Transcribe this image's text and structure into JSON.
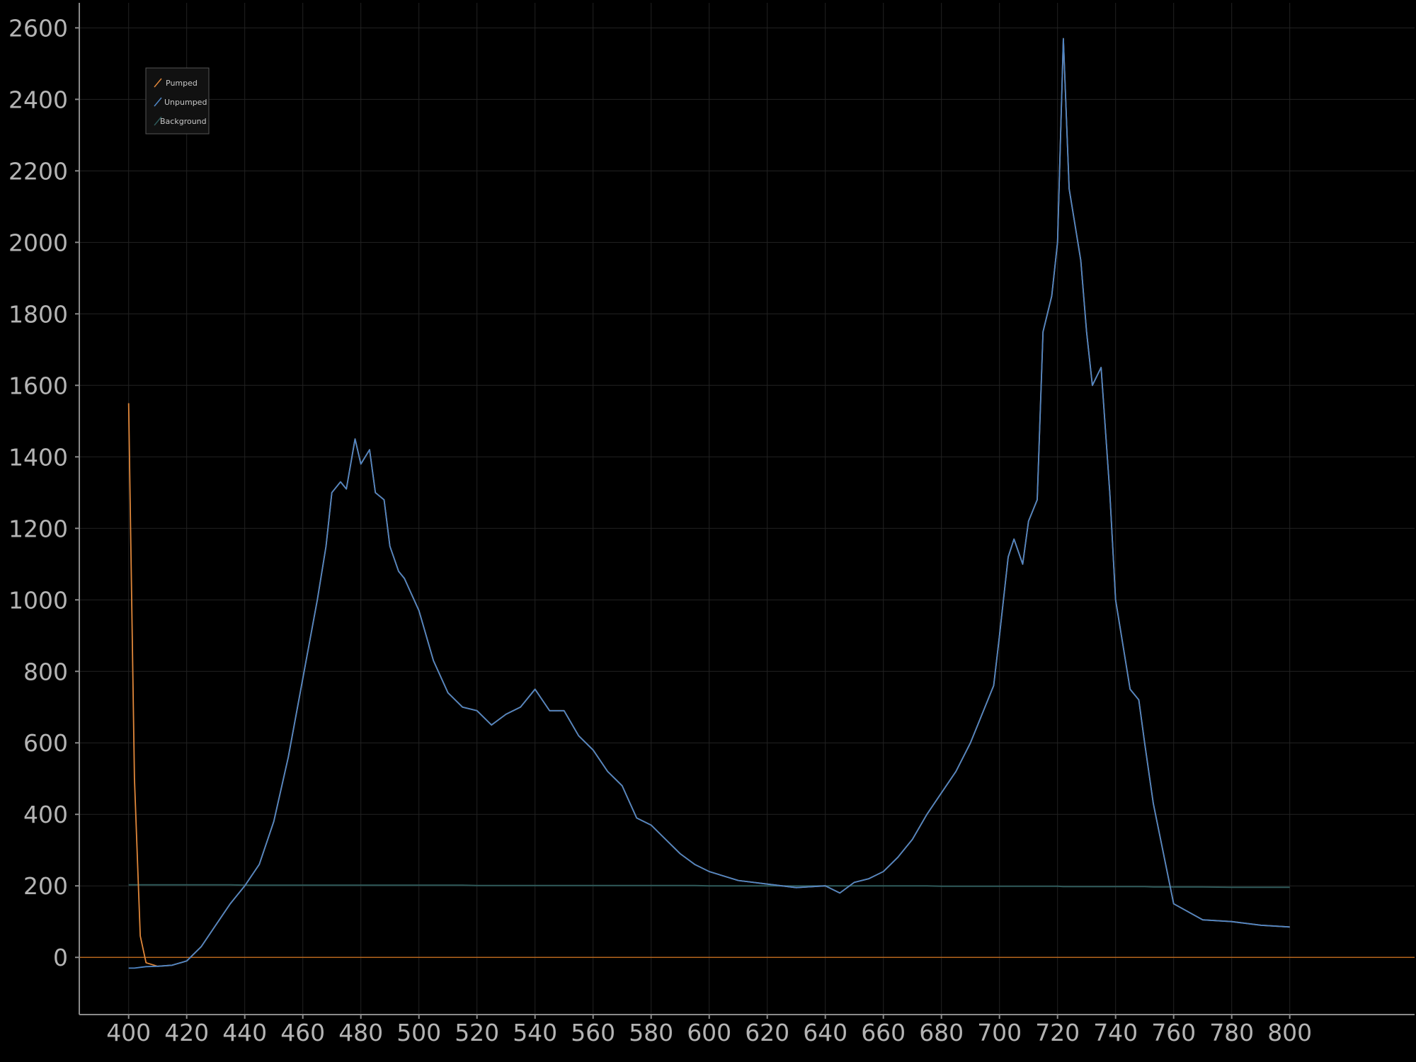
{
  "chart_data": {
    "type": "line",
    "title": "",
    "xlabel": "",
    "ylabel": "",
    "xlim": [
      383,
      843
    ],
    "ylim": [
      -160,
      2670
    ],
    "x_ticks": [
      400,
      420,
      440,
      460,
      480,
      500,
      520,
      540,
      560,
      580,
      600,
      620,
      640,
      660,
      680,
      700,
      720,
      740,
      760,
      780,
      800
    ],
    "y_ticks": [
      0,
      200,
      400,
      600,
      800,
      1000,
      1200,
      1400,
      1600,
      1800,
      2000,
      2200,
      2400,
      2600
    ],
    "grid": true,
    "zero_line": true,
    "legend": {
      "position": "top-left",
      "entries": [
        "Pumped",
        "Unpumped",
        "Background"
      ]
    },
    "colors": {
      "background": "#000000",
      "axis": "#8a8a8a",
      "grid": "#222222",
      "tick_label": "#b4b4b4",
      "zero_line": "#b5651d",
      "pumped": "#e0873a",
      "unpumped": "#4f86c6",
      "background_series": "#2f5a5a"
    },
    "x": [
      400,
      402,
      404,
      406,
      410,
      415,
      420,
      425,
      430,
      435,
      440,
      445,
      450,
      455,
      460,
      465,
      468,
      470,
      473,
      475,
      478,
      480,
      483,
      485,
      488,
      490,
      493,
      495,
      500,
      505,
      510,
      515,
      520,
      525,
      530,
      535,
      540,
      545,
      550,
      555,
      560,
      565,
      570,
      575,
      580,
      585,
      590,
      595,
      600,
      610,
      620,
      630,
      640,
      645,
      650,
      655,
      660,
      665,
      670,
      675,
      680,
      685,
      690,
      695,
      698,
      700,
      703,
      705,
      708,
      710,
      713,
      715,
      718,
      720,
      722,
      724,
      726,
      728,
      730,
      732,
      735,
      738,
      740,
      743,
      745,
      748,
      750,
      753,
      755,
      760,
      770,
      780,
      790,
      800
    ],
    "series": [
      {
        "name": "Pumped",
        "values": [
          1550,
          500,
          60,
          -15,
          -25,
          -22,
          -10,
          30,
          90,
          150,
          200,
          260,
          380,
          560,
          780,
          1000,
          1150,
          1300,
          1330,
          1310,
          1450,
          1380,
          1420,
          1300,
          1280,
          1150,
          1080,
          1060,
          970,
          830,
          740,
          700,
          690,
          650,
          680,
          700,
          750,
          690,
          690,
          620,
          580,
          520,
          480,
          390,
          370,
          330,
          290,
          260,
          240,
          215,
          205,
          195,
          200,
          180,
          210,
          220,
          240,
          280,
          330,
          400,
          460,
          520,
          600,
          700,
          760,
          900,
          1120,
          1170,
          1100,
          1220,
          1280,
          1750,
          1850,
          2000,
          2570,
          2150,
          2050,
          1950,
          1750,
          1600,
          1650,
          1300,
          1000,
          850,
          750,
          720,
          600,
          430,
          350,
          150,
          105,
          100,
          90,
          85
        ]
      },
      {
        "name": "Unpumped",
        "values": [
          -30,
          -30,
          -28,
          -26,
          -25,
          -22,
          -10,
          30,
          90,
          150,
          200,
          260,
          380,
          560,
          780,
          1000,
          1150,
          1300,
          1330,
          1310,
          1450,
          1380,
          1420,
          1300,
          1280,
          1150,
          1080,
          1060,
          970,
          830,
          740,
          700,
          690,
          650,
          680,
          700,
          750,
          690,
          690,
          620,
          580,
          520,
          480,
          390,
          370,
          330,
          290,
          260,
          240,
          215,
          205,
          195,
          200,
          180,
          210,
          220,
          240,
          280,
          330,
          400,
          460,
          520,
          600,
          700,
          760,
          900,
          1120,
          1170,
          1100,
          1220,
          1280,
          1750,
          1850,
          2000,
          2570,
          2150,
          2050,
          1950,
          1750,
          1600,
          1650,
          1300,
          1000,
          850,
          750,
          720,
          600,
          430,
          350,
          150,
          105,
          100,
          90,
          85
        ]
      },
      {
        "name": "Background",
        "values": [
          203,
          203,
          203,
          203,
          203,
          203,
          203,
          203,
          203,
          203,
          202,
          202,
          202,
          202,
          202,
          202,
          202,
          202,
          202,
          202,
          202,
          202,
          202,
          202,
          202,
          202,
          202,
          202,
          202,
          202,
          202,
          202,
          201,
          201,
          201,
          201,
          201,
          201,
          201,
          201,
          201,
          201,
          201,
          201,
          201,
          201,
          201,
          201,
          200,
          200,
          200,
          200,
          200,
          200,
          200,
          200,
          200,
          200,
          200,
          200,
          199,
          199,
          199,
          199,
          199,
          199,
          199,
          199,
          199,
          199,
          199,
          199,
          199,
          199,
          198,
          198,
          198,
          198,
          198,
          198,
          198,
          198,
          198,
          198,
          198,
          198,
          198,
          197,
          197,
          197,
          197,
          196,
          196,
          196
        ]
      }
    ]
  }
}
